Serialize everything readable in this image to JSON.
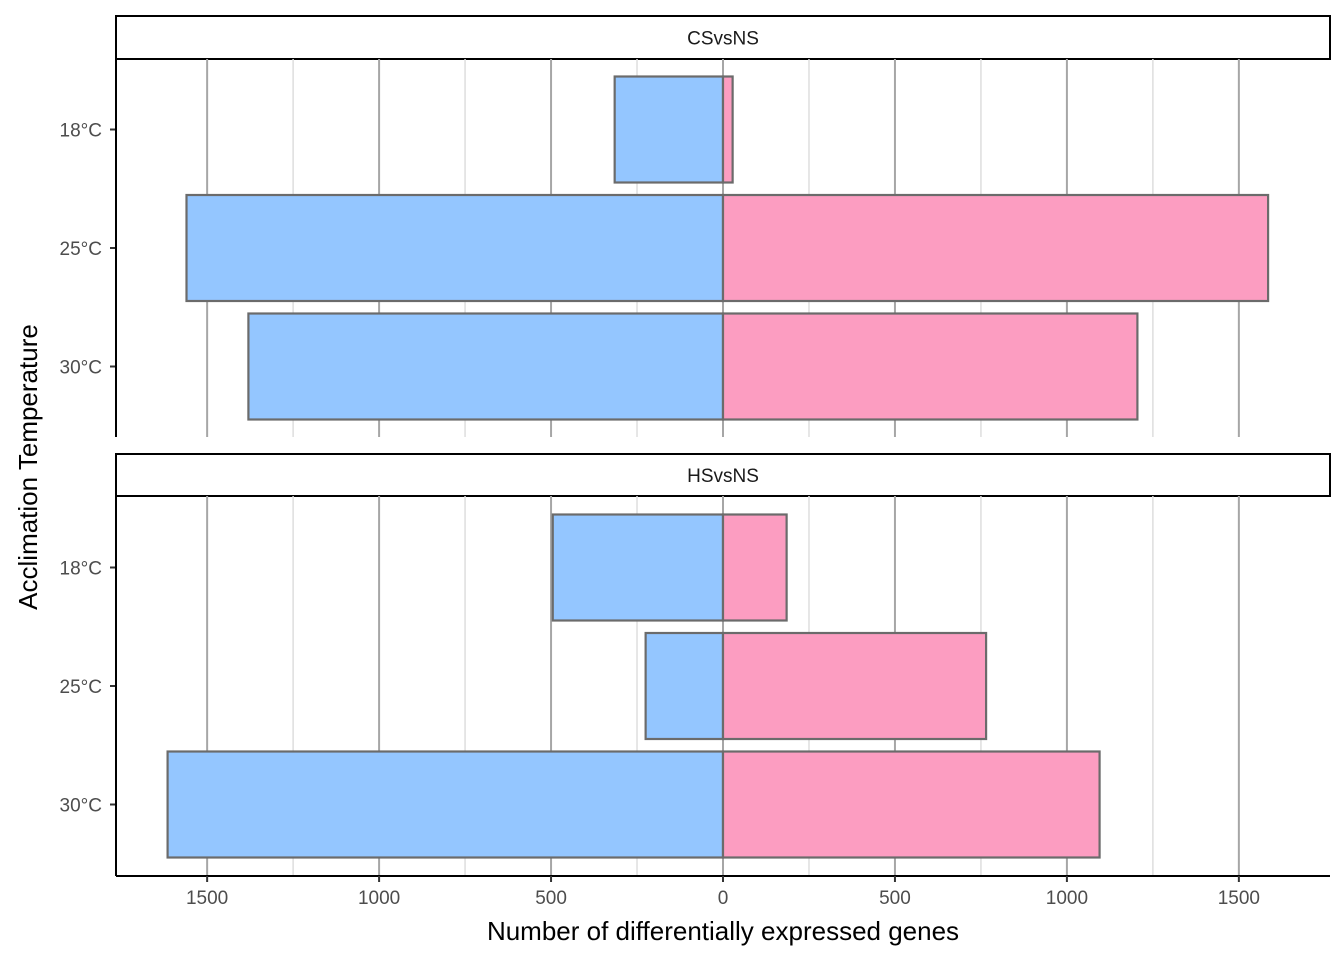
{
  "chart_data": {
    "type": "bar",
    "orientation": "horizontal",
    "xlabel": "Number of differentially expressed genes",
    "ylabel": "Acclimation Temperature",
    "categories": [
      "18°C",
      "25°C",
      "30°C"
    ],
    "xlim": [
      -1765,
      1765
    ],
    "x_major_ticks": [
      -1500,
      -1000,
      -500,
      0,
      500,
      1000,
      1500
    ],
    "x_minor_ticks": [
      -1250,
      -750,
      -250,
      250,
      750,
      1250
    ],
    "x_tick_labels": [
      "1500",
      "1000",
      "500",
      "0",
      "500",
      "1000",
      "1500"
    ],
    "colors": {
      "down": "#94C6FF",
      "up": "#FC9DC1",
      "bar_outline": "#6b6b6b",
      "grid_major": "#a6a6a6",
      "grid_minor": "#dedede"
    },
    "panels": [
      {
        "strip": "CSvsNS",
        "series": [
          {
            "values": [
              -315,
              -1560,
              -1380
            ],
            "color": "#94C6FF"
          },
          {
            "values": [
              28,
              1585,
              1205
            ],
            "color": "#FC9DC1"
          }
        ]
      },
      {
        "strip": "HSvsNS",
        "series": [
          {
            "values": [
              -495,
              -225,
              -1615
            ],
            "color": "#94C6FF"
          },
          {
            "values": [
              185,
              765,
              1095
            ],
            "color": "#FC9DC1"
          }
        ]
      }
    ]
  }
}
